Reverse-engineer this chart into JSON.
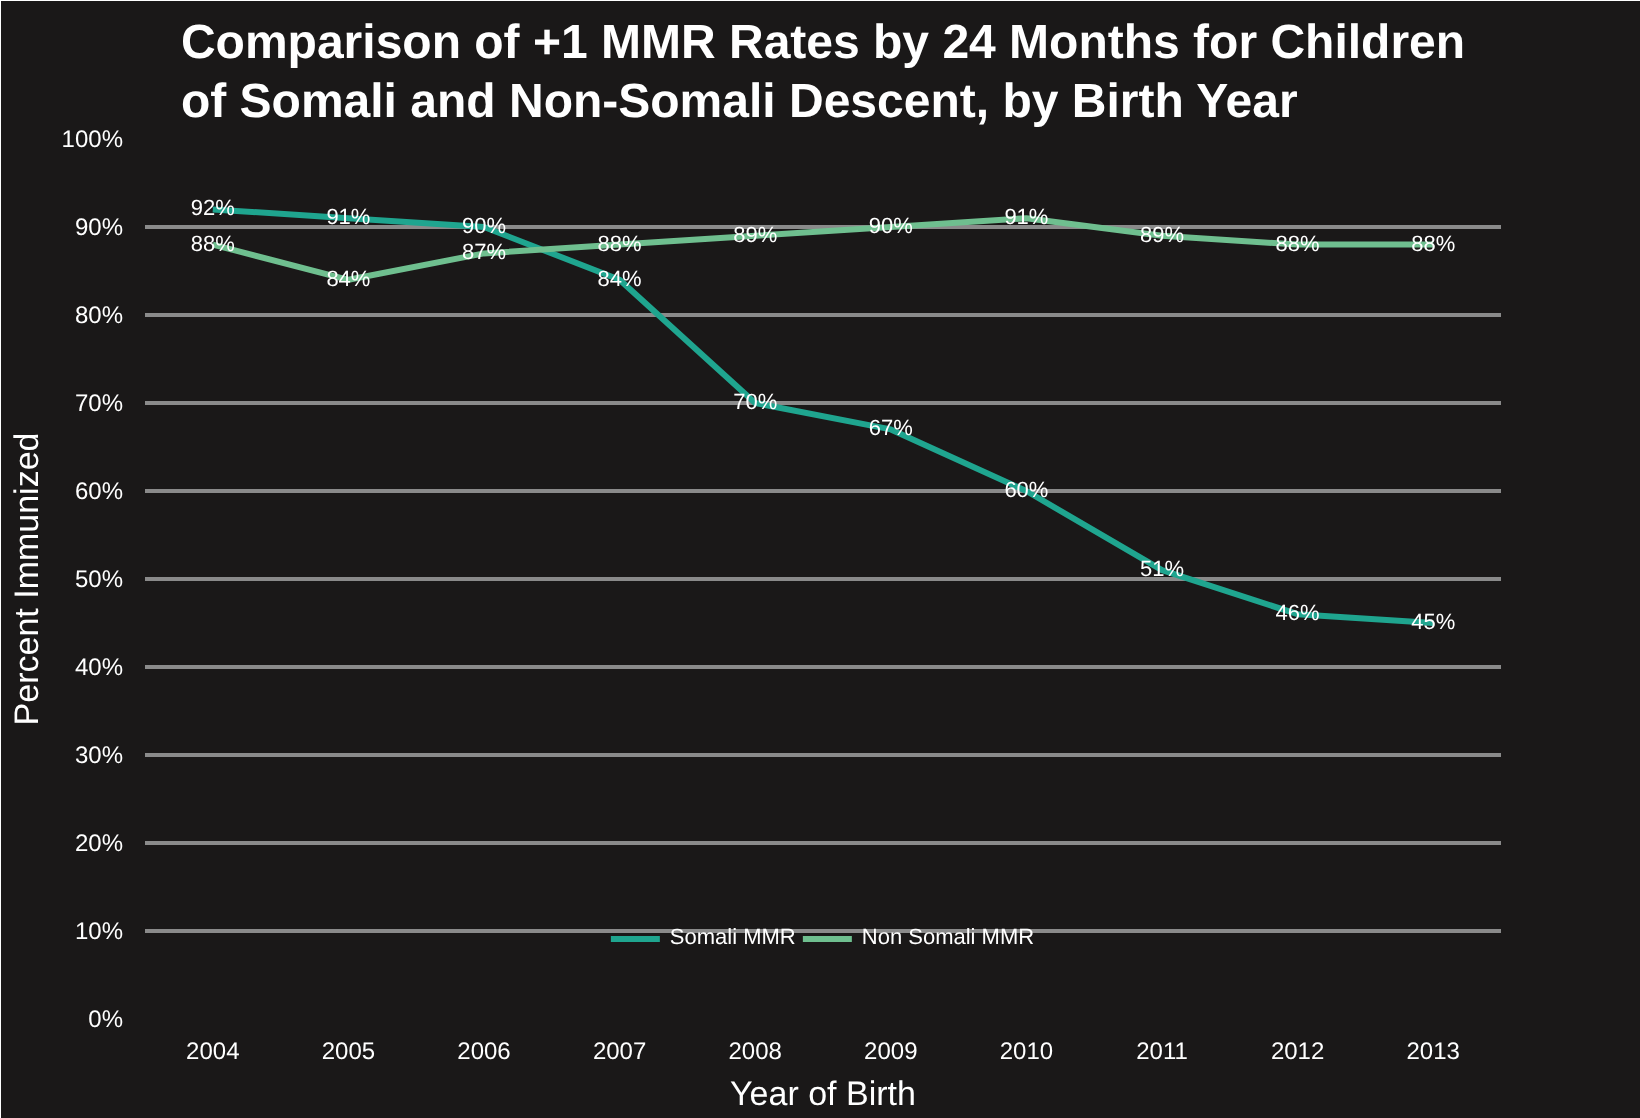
{
  "chart_data": {
    "type": "line",
    "title": "Comparison of +1 MMR Rates by 24 Months for Children of Somali and Non-Somali Descent, by Birth Year",
    "xlabel": "Year of Birth",
    "ylabel": "Percent Immunized",
    "categories": [
      "2004",
      "2005",
      "2006",
      "2007",
      "2008",
      "2009",
      "2010",
      "2011",
      "2012",
      "2013"
    ],
    "series": [
      {
        "name": "Somali MMR",
        "color": "#1fa58f",
        "values": [
          92,
          91,
          90,
          84,
          70,
          67,
          60,
          51,
          46,
          45
        ],
        "value_labels": [
          "92%",
          "91%",
          "90%",
          "84%",
          "70%",
          "67%",
          "60%",
          "51%",
          "46%",
          "45%"
        ]
      },
      {
        "name": "Non Somali MMR",
        "color": "#6fbf8f",
        "values": [
          88,
          84,
          87,
          88,
          89,
          90,
          91,
          89,
          88,
          88
        ],
        "value_labels": [
          "88%",
          "84%",
          "87%",
          "88%",
          "89%",
          "90%",
          "91%",
          "89%",
          "88%",
          "88%"
        ]
      }
    ],
    "ylim": [
      0,
      100
    ],
    "yticks": [
      {
        "value": 0,
        "label": "0%"
      },
      {
        "value": 10,
        "label": "10%"
      },
      {
        "value": 20,
        "label": "20%"
      },
      {
        "value": 30,
        "label": "30%"
      },
      {
        "value": 40,
        "label": "40%"
      },
      {
        "value": 50,
        "label": "50%"
      },
      {
        "value": 60,
        "label": "60%"
      },
      {
        "value": 70,
        "label": "70%"
      },
      {
        "value": 80,
        "label": "80%"
      },
      {
        "value": 90,
        "label": "90%"
      },
      {
        "value": 100,
        "label": "100%"
      }
    ],
    "grid": "y",
    "legend": "bottom",
    "marker": "none",
    "line_style": "solid"
  }
}
